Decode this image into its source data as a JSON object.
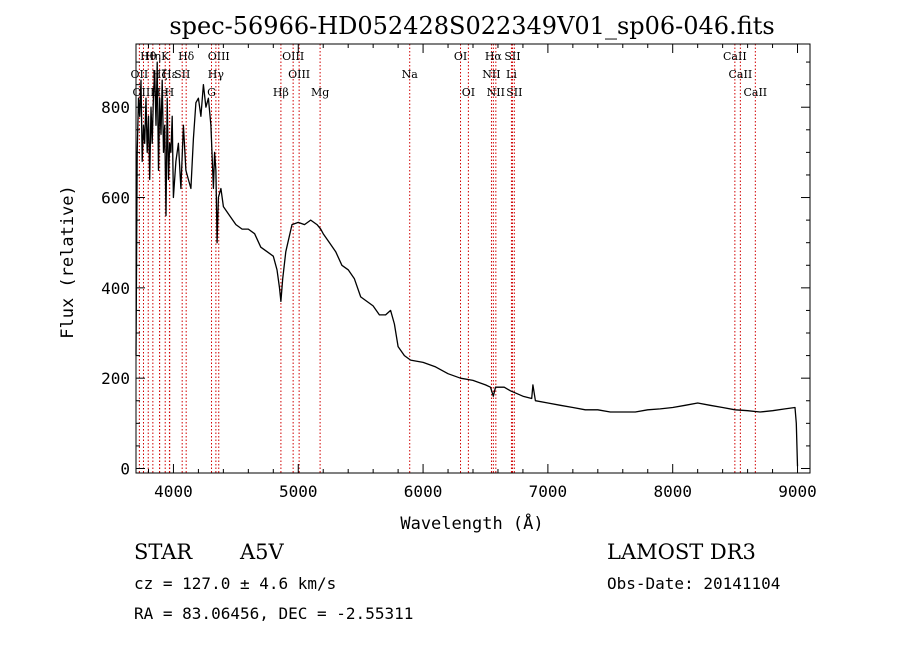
{
  "chart_data": {
    "type": "line",
    "title": "spec-56966-HD052428S022349V01_sp06-046.fits",
    "xlabel": "Wavelength (Å)",
    "ylabel": "Flux (relative)",
    "xlim": [
      3700,
      9100
    ],
    "ylim": [
      -10,
      940
    ],
    "xticks": [
      4000,
      5000,
      6000,
      7000,
      8000,
      9000
    ],
    "yticks": [
      0,
      200,
      400,
      600,
      800
    ],
    "x": [
      3700,
      3710,
      3720,
      3730,
      3740,
      3750,
      3760,
      3770,
      3780,
      3790,
      3800,
      3810,
      3820,
      3830,
      3840,
      3850,
      3860,
      3870,
      3880,
      3890,
      3900,
      3910,
      3920,
      3930,
      3940,
      3950,
      3960,
      3970,
      3980,
      3990,
      4000,
      4020,
      4040,
      4060,
      4080,
      4100,
      4120,
      4140,
      4160,
      4180,
      4200,
      4220,
      4240,
      4260,
      4280,
      4300,
      4320,
      4330,
      4340,
      4350,
      4360,
      4380,
      4400,
      4450,
      4500,
      4550,
      4600,
      4650,
      4700,
      4750,
      4800,
      4830,
      4850,
      4861,
      4875,
      4900,
      4950,
      5000,
      5050,
      5100,
      5150,
      5180,
      5200,
      5250,
      5300,
      5350,
      5400,
      5450,
      5500,
      5550,
      5600,
      5650,
      5700,
      5740,
      5770,
      5800,
      5850,
      5900,
      6000,
      6100,
      6200,
      6300,
      6400,
      6500,
      6540,
      6563,
      6580,
      6650,
      6700,
      6800,
      6870,
      6880,
      6900,
      7000,
      7100,
      7200,
      7300,
      7400,
      7500,
      7600,
      7700,
      7800,
      7900,
      8000,
      8100,
      8200,
      8300,
      8400,
      8500,
      8600,
      8700,
      8800,
      8900,
      8980,
      8990,
      9000
    ],
    "values": [
      250,
      700,
      820,
      780,
      860,
      680,
      760,
      720,
      820,
      700,
      780,
      640,
      800,
      720,
      830,
      880,
      760,
      900,
      660,
      820,
      740,
      860,
      700,
      760,
      560,
      820,
      640,
      720,
      700,
      780,
      600,
      680,
      720,
      620,
      760,
      660,
      640,
      620,
      730,
      810,
      820,
      780,
      850,
      800,
      820,
      760,
      620,
      700,
      660,
      500,
      600,
      620,
      580,
      560,
      540,
      530,
      530,
      520,
      490,
      480,
      470,
      440,
      400,
      370,
      420,
      480,
      540,
      545,
      540,
      550,
      540,
      530,
      520,
      500,
      480,
      450,
      440,
      420,
      380,
      370,
      360,
      340,
      340,
      350,
      320,
      270,
      250,
      240,
      235,
      225,
      210,
      200,
      195,
      185,
      180,
      160,
      180,
      180,
      172,
      160,
      155,
      185,
      150,
      145,
      140,
      135,
      130,
      130,
      125,
      125,
      125,
      130,
      132,
      135,
      140,
      145,
      140,
      135,
      130,
      128,
      125,
      128,
      132,
      135,
      100,
      5
    ],
    "lines": [
      {
        "label": "Hθ",
        "x": 3798,
        "row": 0
      },
      {
        "label": "Hη",
        "x": 3835,
        "row": 0
      },
      {
        "label": "K",
        "x": 3934,
        "row": 0
      },
      {
        "label": "Hδ",
        "x": 4102,
        "row": 0
      },
      {
        "label": "OIII",
        "x": 4363,
        "row": 0
      },
      {
        "label": "OIII",
        "x": 4959,
        "row": 0
      },
      {
        "label": "OI",
        "x": 6300,
        "row": 0
      },
      {
        "label": "Hα",
        "x": 6563,
        "row": 0
      },
      {
        "label": "SII",
        "x": 6716,
        "row": 0
      },
      {
        "label": "CaII",
        "x": 8498,
        "row": 0
      },
      {
        "label": "OII",
        "x": 3727,
        "row": 1
      },
      {
        "label": "Hζ",
        "x": 3889,
        "row": 1
      },
      {
        "label": "Hε",
        "x": 3970,
        "row": 1
      },
      {
        "label": "SII",
        "x": 4070,
        "row": 1
      },
      {
        "label": "Hγ",
        "x": 4340,
        "row": 1
      },
      {
        "label": "OIII",
        "x": 5007,
        "row": 1
      },
      {
        "label": "Na",
        "x": 5893,
        "row": 1
      },
      {
        "label": "NII",
        "x": 6548,
        "row": 1
      },
      {
        "label": "Li",
        "x": 6708,
        "row": 1
      },
      {
        "label": "CaII",
        "x": 8542,
        "row": 1
      },
      {
        "label": "OIII",
        "x": 3760,
        "row": 2
      },
      {
        "label": "He",
        "x": 3889,
        "row": 2
      },
      {
        "label": "H",
        "x": 3968,
        "row": 2
      },
      {
        "label": "G",
        "x": 4305,
        "row": 2
      },
      {
        "label": "Hβ",
        "x": 4861,
        "row": 2
      },
      {
        "label": "Mg",
        "x": 5175,
        "row": 2
      },
      {
        "label": "OI",
        "x": 6363,
        "row": 2
      },
      {
        "label": "NII",
        "x": 6583,
        "row": 2
      },
      {
        "label": "SII",
        "x": 6731,
        "row": 2
      },
      {
        "label": "CaII",
        "x": 8662,
        "row": 2
      }
    ]
  },
  "info": {
    "class_label": "STAR",
    "subclass": "A5V",
    "survey": "LAMOST DR3",
    "cz": "cz = 127.0 ± 4.6 km/s",
    "obs_date": "Obs-Date: 20141104",
    "radec": "RA =  83.06456, DEC =  -2.55311"
  },
  "colors": {
    "axes": "#000000",
    "line_marker": "#d00000",
    "spectrum": "#000000"
  }
}
